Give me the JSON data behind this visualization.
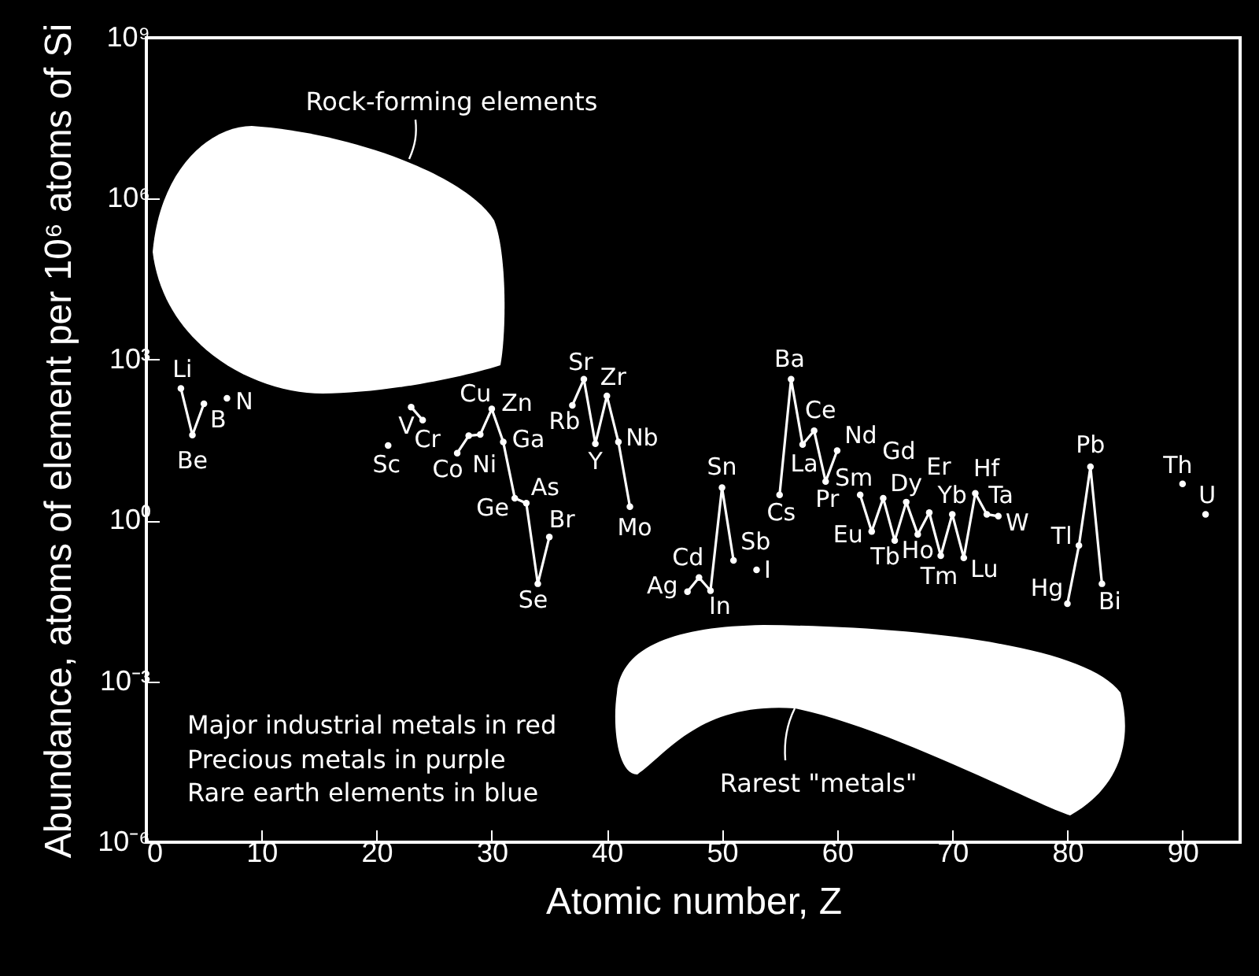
{
  "chart_data": {
    "type": "line",
    "xlabel": "Atomic number, Z",
    "ylabel": "Abundance, atoms of element per 10⁶ atoms of Si",
    "x": [
      3,
      4,
      5,
      6,
      7,
      8,
      9,
      10,
      11,
      12,
      13,
      14,
      15,
      16,
      17,
      18,
      19,
      20,
      21,
      22,
      23,
      24,
      25,
      26,
      27,
      28,
      29,
      30,
      31,
      32,
      33,
      34,
      35,
      36,
      37,
      38,
      39,
      40,
      41,
      42,
      43,
      44,
      45,
      46,
      47,
      48,
      49,
      50,
      51,
      52,
      53,
      54,
      55,
      56,
      57,
      58,
      59,
      60,
      61,
      62,
      63,
      64,
      65,
      66,
      67,
      68,
      69,
      70,
      71,
      72,
      73,
      74,
      75,
      76,
      77,
      78,
      79,
      80,
      81,
      82,
      83,
      84,
      85,
      86,
      87,
      88,
      89,
      90,
      91,
      92
    ],
    "series": [
      {
        "color": "#ffffff",
        "values": [
          290,
          39,
          150,
          null,
          190,
          null,
          null,
          null,
          null,
          null,
          null,
          null,
          null,
          null,
          null,
          null,
          null,
          null,
          25,
          null,
          130,
          74,
          null,
          null,
          18,
          38,
          40,
          120,
          29,
          2.6,
          2.1,
          0.066,
          0.49,
          null,
          140,
          430,
          27,
          210,
          29,
          1.8,
          null,
          null,
          null,
          null,
          0.047,
          0.086,
          0.049,
          4.1,
          0.18,
          null,
          0.12,
          null,
          3.0,
          430,
          26,
          47,
          5.3,
          20,
          null,
          3.0,
          0.62,
          2.6,
          0.42,
          2.2,
          0.55,
          1.4,
          0.22,
          1.3,
          0.2,
          3.2,
          1.3,
          1.2,
          null,
          null,
          null,
          null,
          null,
          0.028,
          0.34,
          10,
          0.066,
          null,
          null,
          null,
          null,
          null,
          null,
          4.8,
          null,
          1.3
        ]
      }
    ],
    "xlim": [
      0,
      95
    ],
    "xticks": [
      0,
      10,
      20,
      30,
      40,
      50,
      60,
      70,
      80,
      90
    ],
    "log": true,
    "ylim": [
      1e-06,
      1000000000.0
    ],
    "yticks": [
      {
        "value": 1e-06,
        "label": "10⁻⁶"
      },
      {
        "value": 0.001,
        "label": "10⁻³"
      },
      {
        "value": 1,
        "label": "10⁰"
      },
      {
        "value": 1000.0,
        "label": "10³"
      },
      {
        "value": 1000000.0,
        "label": "10⁶"
      },
      {
        "value": 1000000000.0,
        "label": "10⁹"
      }
    ],
    "grid": false,
    "marker": "circle",
    "line_style": "solid",
    "annotations": [
      "Rock-forming elements",
      "Rarest \"metals\"",
      "Major industrial metals in red",
      "Precious metals in purple",
      "Rare earth elements in blue",
      {
        "text": "Li",
        "x": 3,
        "y": 290
      },
      {
        "text": "Be",
        "x": 4,
        "y": 39
      },
      {
        "text": "B",
        "x": 5,
        "y": 150
      },
      {
        "text": "N",
        "x": 7,
        "y": 190
      },
      {
        "text": "Sc",
        "x": 21,
        "y": 25
      },
      {
        "text": "V",
        "x": 23,
        "y": 130
      },
      {
        "text": "Cr",
        "x": 24,
        "y": 74
      },
      {
        "text": "Co",
        "x": 27,
        "y": 18
      },
      {
        "text": "Ni",
        "x": 28,
        "y": 38
      },
      {
        "text": "Cu",
        "x": 29,
        "y": 40
      },
      {
        "text": "Zn",
        "x": 30,
        "y": 120
      },
      {
        "text": "Ga",
        "x": 31,
        "y": 29
      },
      {
        "text": "Ge",
        "x": 32,
        "y": 2.6
      },
      {
        "text": "As",
        "x": 33,
        "y": 2.1
      },
      {
        "text": "Se",
        "x": 34,
        "y": 0.066
      },
      {
        "text": "Br",
        "x": 35,
        "y": 0.49
      },
      {
        "text": "Rb",
        "x": 37,
        "y": 140
      },
      {
        "text": "Sr",
        "x": 38,
        "y": 430
      },
      {
        "text": "Y",
        "x": 39,
        "y": 27
      },
      {
        "text": "Zr",
        "x": 40,
        "y": 210
      },
      {
        "text": "Nb",
        "x": 41,
        "y": 29
      },
      {
        "text": "Mo",
        "x": 42,
        "y": 1.8
      },
      {
        "text": "Ag",
        "x": 47,
        "y": 0.047
      },
      {
        "text": "Cd",
        "x": 48,
        "y": 0.086
      },
      {
        "text": "In",
        "x": 49,
        "y": 0.049
      },
      {
        "text": "Sn",
        "x": 50,
        "y": 4.1
      },
      {
        "text": "Sb",
        "x": 51,
        "y": 0.18
      },
      {
        "text": "I",
        "x": 53,
        "y": 0.12
      },
      {
        "text": "Cs",
        "x": 55,
        "y": 3.0
      },
      {
        "text": "Ba",
        "x": 56,
        "y": 430
      },
      {
        "text": "La",
        "x": 57,
        "y": 26
      },
      {
        "text": "Ce",
        "x": 58,
        "y": 47
      },
      {
        "text": "Pr",
        "x": 59,
        "y": 5.3
      },
      {
        "text": "Nd",
        "x": 60,
        "y": 20
      },
      {
        "text": "Sm",
        "x": 62,
        "y": 3.0
      },
      {
        "text": "Eu",
        "x": 63,
        "y": 0.62
      },
      {
        "text": "Gd",
        "x": 64,
        "y": 2.6
      },
      {
        "text": "Tb",
        "x": 65,
        "y": 0.42
      },
      {
        "text": "Dy",
        "x": 66,
        "y": 2.2
      },
      {
        "text": "Ho",
        "x": 67,
        "y": 0.55
      },
      {
        "text": "Er",
        "x": 68,
        "y": 1.4
      },
      {
        "text": "Tm",
        "x": 69,
        "y": 0.22
      },
      {
        "text": "Yb",
        "x": 70,
        "y": 1.3
      },
      {
        "text": "Lu",
        "x": 71,
        "y": 0.2
      },
      {
        "text": "Hf",
        "x": 72,
        "y": 3.2
      },
      {
        "text": "Ta",
        "x": 73,
        "y": 1.3
      },
      {
        "text": "W",
        "x": 74,
        "y": 1.2
      },
      {
        "text": "Hg",
        "x": 80,
        "y": 0.028
      },
      {
        "text": "Tl",
        "x": 81,
        "y": 0.34
      },
      {
        "text": "Pb",
        "x": 82,
        "y": 10
      },
      {
        "text": "Bi",
        "x": 83,
        "y": 0.066
      },
      {
        "text": "Th",
        "x": 90,
        "y": 4.8
      },
      {
        "text": "U",
        "x": 92,
        "y": 1.3
      }
    ]
  }
}
